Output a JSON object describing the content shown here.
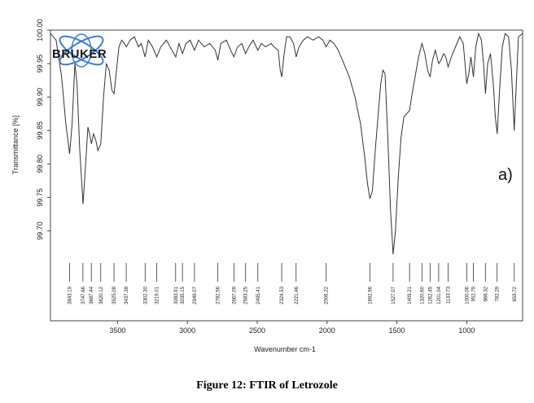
{
  "caption": "Figure 12: FTIR of Letrozole",
  "logo": {
    "text": "BRUKER",
    "color": "#3b7fd0"
  },
  "chart_data": {
    "type": "line",
    "panel_label": "a)",
    "xlabel": "Wavenumber cm-1",
    "ylabel": "Transmittance [%]",
    "xlim": [
      3980,
      600
    ],
    "ylim": [
      99.68,
      100.0
    ],
    "xticks": [
      3500,
      3000,
      2500,
      2000,
      1500,
      1000
    ],
    "yticks": [
      "99.70",
      "99.75",
      "99.80",
      "99.85",
      "99.90",
      "99.95",
      "100.00"
    ],
    "peak_labels": [
      {
        "x": 3843.19,
        "label": "3843.19"
      },
      {
        "x": 3747.66,
        "label": "3747.66"
      },
      {
        "x": 3687.44,
        "label": "3687.44"
      },
      {
        "x": 3620.12,
        "label": "3620.12"
      },
      {
        "x": 3525.08,
        "label": "3525.08"
      },
      {
        "x": 3437.38,
        "label": "3437.38"
      },
      {
        "x": 3302.3,
        "label": "3302.30"
      },
      {
        "x": 3219.01,
        "label": "3219.01"
      },
      {
        "x": 3083.91,
        "label": "3083.91"
      },
      {
        "x": 3035.15,
        "label": "3035.15"
      },
      {
        "x": 2949.07,
        "label": "2949.07"
      },
      {
        "x": 2782.56,
        "label": "2782.56"
      },
      {
        "x": 2667.09,
        "label": "2667.09"
      },
      {
        "x": 2583.25,
        "label": "2583.25"
      },
      {
        "x": 2495.41,
        "label": "2495.41"
      },
      {
        "x": 2324.53,
        "label": "2324.53"
      },
      {
        "x": 2221.46,
        "label": "2221.46"
      },
      {
        "x": 2006.22,
        "label": "2006.22"
      },
      {
        "x": 1692.96,
        "label": "1692.96"
      },
      {
        "x": 1527.07,
        "label": "1527.07"
      },
      {
        "x": 1409.21,
        "label": "1409.21"
      },
      {
        "x": 1320.6,
        "label": "1320.60"
      },
      {
        "x": 1262.45,
        "label": "1262.45"
      },
      {
        "x": 1201.04,
        "label": "1201.04"
      },
      {
        "x": 1133.73,
        "label": "1133.73"
      },
      {
        "x": 1000.06,
        "label": "1000.06"
      },
      {
        "x": 952.79,
        "label": "952.79"
      },
      {
        "x": 866.32,
        "label": "866.32"
      },
      {
        "x": 782.29,
        "label": "782.29"
      },
      {
        "x": 659.72,
        "label": "659.72"
      }
    ],
    "series": [
      {
        "color": "#333333",
        "points": [
          [
            3980,
            99.995
          ],
          [
            3940,
            99.985
          ],
          [
            3900,
            99.93
          ],
          [
            3870,
            99.86
          ],
          [
            3843,
            99.815
          ],
          [
            3825,
            99.86
          ],
          [
            3805,
            99.95
          ],
          [
            3790,
            99.92
          ],
          [
            3770,
            99.82
          ],
          [
            3747,
            99.74
          ],
          [
            3728,
            99.8
          ],
          [
            3712,
            99.855
          ],
          [
            3700,
            99.845
          ],
          [
            3687,
            99.83
          ],
          [
            3672,
            99.845
          ],
          [
            3655,
            99.835
          ],
          [
            3640,
            99.82
          ],
          [
            3620,
            99.83
          ],
          [
            3600,
            99.9
          ],
          [
            3580,
            99.95
          ],
          [
            3560,
            99.94
          ],
          [
            3540,
            99.91
          ],
          [
            3525,
            99.905
          ],
          [
            3510,
            99.935
          ],
          [
            3490,
            99.975
          ],
          [
            3470,
            99.985
          ],
          [
            3450,
            99.98
          ],
          [
            3437,
            99.975
          ],
          [
            3410,
            99.985
          ],
          [
            3380,
            99.99
          ],
          [
            3350,
            99.975
          ],
          [
            3330,
            99.98
          ],
          [
            3302,
            99.96
          ],
          [
            3280,
            99.985
          ],
          [
            3250,
            99.975
          ],
          [
            3219,
            99.96
          ],
          [
            3190,
            99.975
          ],
          [
            3150,
            99.985
          ],
          [
            3110,
            99.97
          ],
          [
            3083,
            99.96
          ],
          [
            3060,
            99.98
          ],
          [
            3035,
            99.965
          ],
          [
            3010,
            99.98
          ],
          [
            2980,
            99.985
          ],
          [
            2949,
            99.97
          ],
          [
            2920,
            99.985
          ],
          [
            2880,
            99.975
          ],
          [
            2840,
            99.98
          ],
          [
            2800,
            99.97
          ],
          [
            2782,
            99.955
          ],
          [
            2760,
            99.98
          ],
          [
            2720,
            99.985
          ],
          [
            2690,
            99.97
          ],
          [
            2667,
            99.96
          ],
          [
            2640,
            99.975
          ],
          [
            2610,
            99.98
          ],
          [
            2583,
            99.965
          ],
          [
            2560,
            99.975
          ],
          [
            2530,
            99.985
          ],
          [
            2495,
            99.97
          ],
          [
            2470,
            99.98
          ],
          [
            2440,
            99.975
          ],
          [
            2400,
            99.98
          ],
          [
            2380,
            99.975
          ],
          [
            2350,
            99.97
          ],
          [
            2335,
            99.94
          ],
          [
            2324,
            99.93
          ],
          [
            2310,
            99.96
          ],
          [
            2290,
            99.99
          ],
          [
            2265,
            99.99
          ],
          [
            2240,
            99.98
          ],
          [
            2221,
            99.96
          ],
          [
            2200,
            99.975
          ],
          [
            2170,
            99.985
          ],
          [
            2140,
            99.99
          ],
          [
            2100,
            99.985
          ],
          [
            2060,
            99.99
          ],
          [
            2030,
            99.985
          ],
          [
            2006,
            99.975
          ],
          [
            1980,
            99.985
          ],
          [
            1950,
            99.98
          ],
          [
            1920,
            99.97
          ],
          [
            1880,
            99.95
          ],
          [
            1840,
            99.93
          ],
          [
            1800,
            99.9
          ],
          [
            1760,
            99.86
          ],
          [
            1730,
            99.81
          ],
          [
            1710,
            99.77
          ],
          [
            1693,
            99.748
          ],
          [
            1675,
            99.76
          ],
          [
            1655,
            99.82
          ],
          [
            1630,
            99.885
          ],
          [
            1615,
            99.92
          ],
          [
            1600,
            99.94
          ],
          [
            1585,
            99.935
          ],
          [
            1565,
            99.84
          ],
          [
            1545,
            99.73
          ],
          [
            1527,
            99.665
          ],
          [
            1510,
            99.7
          ],
          [
            1490,
            99.78
          ],
          [
            1470,
            99.84
          ],
          [
            1450,
            99.87
          ],
          [
            1430,
            99.875
          ],
          [
            1409,
            99.88
          ],
          [
            1395,
            99.9
          ],
          [
            1370,
            99.93
          ],
          [
            1345,
            99.96
          ],
          [
            1320,
            99.98
          ],
          [
            1300,
            99.965
          ],
          [
            1280,
            99.94
          ],
          [
            1262,
            99.93
          ],
          [
            1245,
            99.955
          ],
          [
            1225,
            99.97
          ],
          [
            1201,
            99.95
          ],
          [
            1185,
            99.955
          ],
          [
            1165,
            99.965
          ],
          [
            1150,
            99.96
          ],
          [
            1133,
            99.945
          ],
          [
            1110,
            99.96
          ],
          [
            1080,
            99.975
          ],
          [
            1050,
            99.99
          ],
          [
            1025,
            99.98
          ],
          [
            1000,
            99.92
          ],
          [
            985,
            99.935
          ],
          [
            970,
            99.96
          ],
          [
            952,
            99.93
          ],
          [
            935,
            99.975
          ],
          [
            915,
            99.995
          ],
          [
            895,
            99.985
          ],
          [
            880,
            99.95
          ],
          [
            866,
            99.905
          ],
          [
            850,
            99.95
          ],
          [
            830,
            99.965
          ],
          [
            810,
            99.92
          ],
          [
            795,
            99.87
          ],
          [
            782,
            99.845
          ],
          [
            765,
            99.91
          ],
          [
            745,
            99.975
          ],
          [
            725,
            99.995
          ],
          [
            700,
            99.99
          ],
          [
            680,
            99.94
          ],
          [
            660,
            99.85
          ],
          [
            645,
            99.92
          ],
          [
            630,
            99.99
          ],
          [
            600,
            99.995
          ]
        ]
      }
    ]
  }
}
